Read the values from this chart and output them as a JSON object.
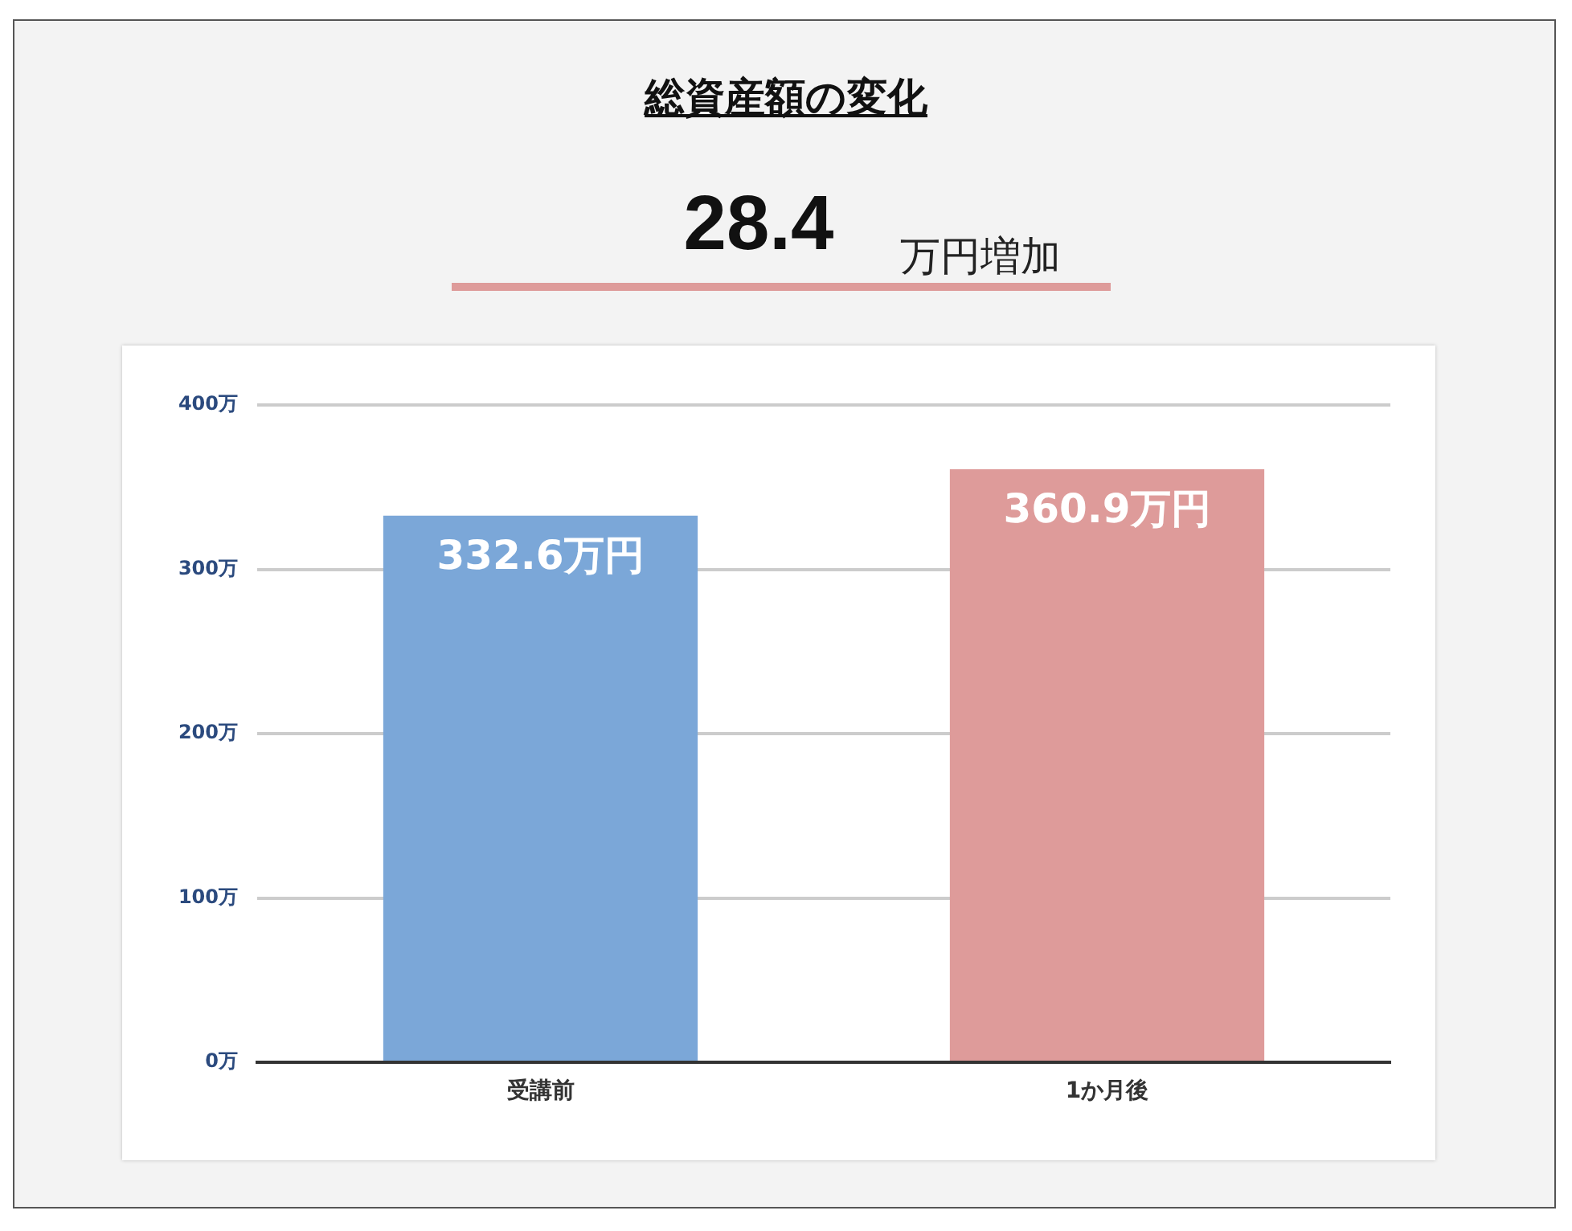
{
  "chart_data": {
    "type": "bar",
    "title": "総資産額の変化",
    "subtitle": "28.4",
    "annotations": [
      "万円増加"
    ],
    "categories": [
      "受講前",
      "1か月後"
    ],
    "values": [
      332.6,
      360.9
    ],
    "colors": [
      "#7ba7d8",
      "#de9b9a"
    ],
    "value_labels": [
      "332.6万円",
      "360.9万円"
    ],
    "ylim": [
      0,
      400
    ],
    "yticks": [
      {
        "value": 0,
        "label": "0万"
      },
      {
        "value": 100,
        "label": "100万"
      },
      {
        "value": 200,
        "label": "200万"
      },
      {
        "value": 300,
        "label": "300万"
      },
      {
        "value": 400,
        "label": "400万"
      }
    ],
    "grid": "y",
    "legend": false
  }
}
